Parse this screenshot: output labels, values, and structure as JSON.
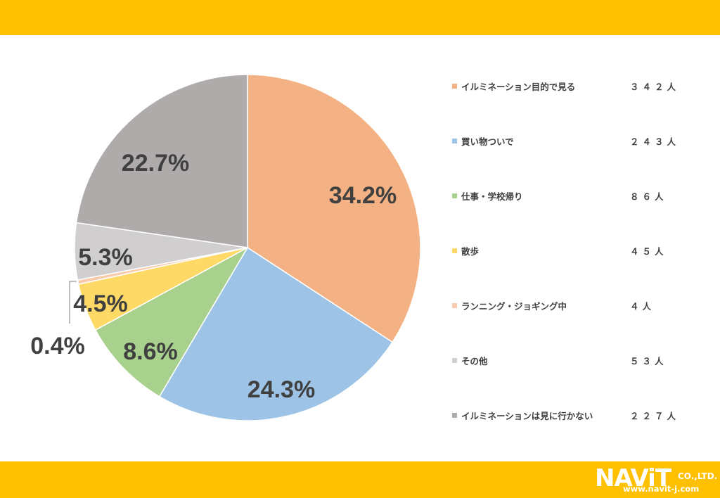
{
  "chart_data": {
    "type": "pie",
    "title": "",
    "categories": [
      "イルミネーション目的で見る",
      "買い物ついで",
      "仕事・学校帰り",
      "散歩",
      "ランニング・ジョギング中",
      "その他",
      "イルミネーションは見に行かない"
    ],
    "values": [
      34.2,
      24.3,
      8.6,
      4.5,
      0.4,
      5.3,
      22.7
    ],
    "counts": [
      "３４２人",
      "２４３人",
      "８６人",
      "４５人",
      "４人",
      "５３人",
      "２２７人"
    ],
    "labels": [
      "34.2%",
      "24.3%",
      "8.6%",
      "4.5%",
      "0.4%",
      "5.3%",
      "22.7%"
    ],
    "colors": [
      "#F4B183",
      "#9DC3E6",
      "#A9D18E",
      "#FFD966",
      "#F8CBAD",
      "#D0CECE",
      "#AFABAB"
    ],
    "legend_position": "right"
  },
  "logo": {
    "brand": "NAViT",
    "company": "CO.,LTD.",
    "url": "www.navit-j.com"
  }
}
